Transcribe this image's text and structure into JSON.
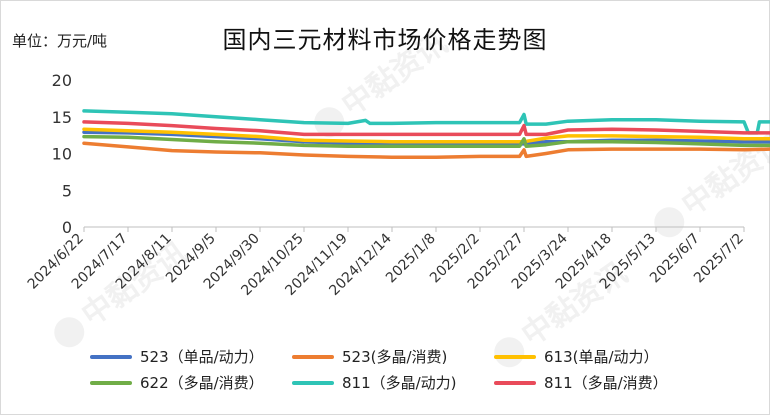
{
  "unit_label": "单位：万元/吨",
  "watermark_text": "中黏资讯",
  "chart_data": {
    "type": "line",
    "title": "国内三元材料市场价格走势图",
    "ylim": [
      0,
      20
    ],
    "yticks": [
      0,
      5,
      10,
      15,
      20
    ],
    "x_tick_labels": [
      "2024/6/22",
      "2024/7/17",
      "2024/8/11",
      "2024/9/5",
      "2024/9/30",
      "2024/10/25",
      "2024/11/19",
      "2024/12/14",
      "2025/1/8",
      "2025/2/2",
      "2025/2/27",
      "2025/3/24",
      "2025/4/18",
      "2025/5/13",
      "2025/6/7",
      "2025/7/2"
    ],
    "grid": false,
    "legend_position": "bottom",
    "series": [
      {
        "name": "523（单品/动力）",
        "color": "#4472C4",
        "values": [
          [
            0,
            12.9
          ],
          [
            1,
            12.8
          ],
          [
            2,
            12.6
          ],
          [
            3,
            12.3
          ],
          [
            4,
            12.0
          ],
          [
            5,
            11.6
          ],
          [
            6,
            11.4
          ],
          [
            7,
            11.3
          ],
          [
            8,
            11.3
          ],
          [
            9,
            11.3
          ],
          [
            10,
            11.3
          ],
          [
            10.5,
            11.6
          ],
          [
            11,
            11.6
          ],
          [
            12,
            11.8
          ],
          [
            13,
            11.8
          ],
          [
            14,
            11.7
          ],
          [
            15,
            11.6
          ],
          [
            15.6,
            11.6
          ]
        ]
      },
      {
        "name": "523(多晶/消费)",
        "color": "#ED7D31",
        "values": [
          [
            0,
            11.4
          ],
          [
            1,
            10.9
          ],
          [
            2,
            10.4
          ],
          [
            3,
            10.2
          ],
          [
            4,
            10.1
          ],
          [
            5,
            9.8
          ],
          [
            6,
            9.6
          ],
          [
            7,
            9.5
          ],
          [
            8,
            9.5
          ],
          [
            9,
            9.6
          ],
          [
            9.9,
            9.6
          ],
          [
            10,
            10.5
          ],
          [
            10.05,
            9.6
          ],
          [
            10.5,
            10.0
          ],
          [
            11,
            10.5
          ],
          [
            12,
            10.6
          ],
          [
            13,
            10.6
          ],
          [
            14,
            10.6
          ],
          [
            15,
            10.5
          ],
          [
            15.6,
            10.6
          ]
        ]
      },
      {
        "name": "613(单晶/动力）",
        "color": "#FFC000",
        "values": [
          [
            0,
            13.3
          ],
          [
            1,
            13.1
          ],
          [
            2,
            12.9
          ],
          [
            3,
            12.6
          ],
          [
            4,
            12.3
          ],
          [
            5,
            11.8
          ],
          [
            6,
            11.7
          ],
          [
            7,
            11.6
          ],
          [
            8,
            11.6
          ],
          [
            9,
            11.6
          ],
          [
            10,
            11.6
          ],
          [
            10.5,
            12.1
          ],
          [
            11,
            12.4
          ],
          [
            12,
            12.4
          ],
          [
            13,
            12.3
          ],
          [
            14,
            12.2
          ],
          [
            15,
            12.0
          ],
          [
            15.6,
            12.0
          ]
        ]
      },
      {
        "name": "622（多晶/消费）",
        "color": "#70AD47",
        "values": [
          [
            0,
            12.3
          ],
          [
            1,
            12.2
          ],
          [
            2,
            11.9
          ],
          [
            3,
            11.6
          ],
          [
            4,
            11.4
          ],
          [
            5,
            11.1
          ],
          [
            6,
            11.0
          ],
          [
            7,
            11.0
          ],
          [
            8,
            11.0
          ],
          [
            9,
            11.0
          ],
          [
            9.9,
            11.0
          ],
          [
            10,
            12.0
          ],
          [
            10.05,
            11.0
          ],
          [
            10.5,
            11.2
          ],
          [
            11,
            11.6
          ],
          [
            12,
            11.6
          ],
          [
            13,
            11.5
          ],
          [
            14,
            11.3
          ],
          [
            15,
            11.1
          ],
          [
            15.6,
            11.1
          ]
        ]
      },
      {
        "name": "811（多晶/动力)",
        "color": "#2EC4B6",
        "values": [
          [
            0,
            15.8
          ],
          [
            1,
            15.6
          ],
          [
            2,
            15.4
          ],
          [
            3,
            15.0
          ],
          [
            4,
            14.6
          ],
          [
            5,
            14.2
          ],
          [
            6,
            14.1
          ],
          [
            6.4,
            14.5
          ],
          [
            6.5,
            14.1
          ],
          [
            7,
            14.1
          ],
          [
            8,
            14.2
          ],
          [
            9,
            14.2
          ],
          [
            9.9,
            14.2
          ],
          [
            10,
            15.3
          ],
          [
            10.05,
            14.0
          ],
          [
            10.5,
            14.0
          ],
          [
            11,
            14.4
          ],
          [
            12,
            14.6
          ],
          [
            13,
            14.6
          ],
          [
            14,
            14.4
          ],
          [
            15,
            14.3
          ],
          [
            15.1,
            12.8
          ],
          [
            15.3,
            12.8
          ],
          [
            15.35,
            14.3
          ],
          [
            15.6,
            14.3
          ]
        ]
      },
      {
        "name": "811（多晶/消费）",
        "color": "#E94B5A",
        "values": [
          [
            0,
            14.3
          ],
          [
            1,
            14.1
          ],
          [
            2,
            13.8
          ],
          [
            3,
            13.4
          ],
          [
            4,
            13.1
          ],
          [
            5,
            12.6
          ],
          [
            6,
            12.6
          ],
          [
            7,
            12.6
          ],
          [
            8,
            12.6
          ],
          [
            9,
            12.6
          ],
          [
            9.9,
            12.6
          ],
          [
            10,
            13.8
          ],
          [
            10.05,
            12.6
          ],
          [
            10.5,
            12.6
          ],
          [
            11,
            13.2
          ],
          [
            12,
            13.3
          ],
          [
            13,
            13.2
          ],
          [
            14,
            13.0
          ],
          [
            15,
            12.8
          ],
          [
            15.6,
            12.8
          ]
        ]
      }
    ]
  }
}
